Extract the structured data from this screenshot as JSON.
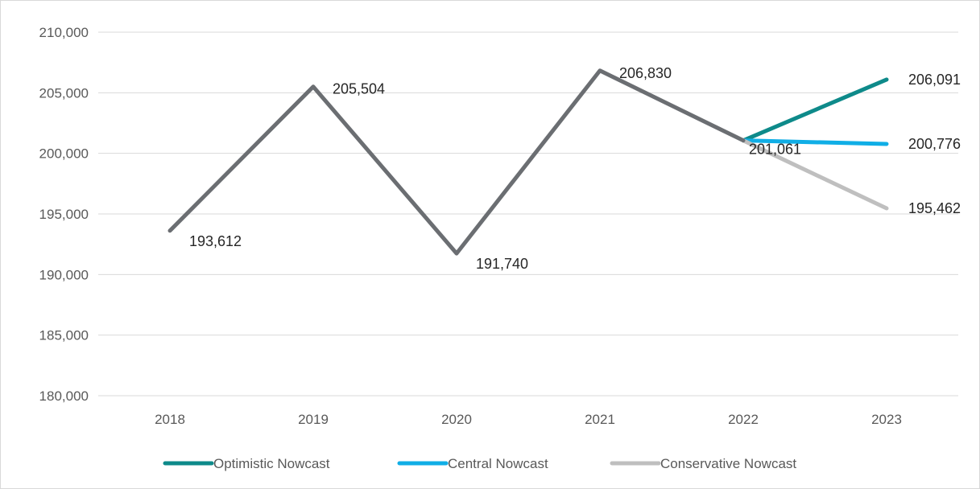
{
  "chart_data": {
    "type": "line",
    "title": "",
    "xlabel": "",
    "ylabel": "",
    "categories": [
      "2018",
      "2019",
      "2020",
      "2021",
      "2022",
      "2023"
    ],
    "ylim": [
      180000,
      210000
    ],
    "yticks": [
      180000,
      185000,
      190000,
      195000,
      200000,
      205000,
      210000
    ],
    "ytick_labels": [
      "180,000",
      "185,000",
      "190,000",
      "195,000",
      "200,000",
      "205,000",
      "210,000"
    ],
    "grid": true,
    "legend_position": "bottom",
    "history": {
      "values": [
        193612,
        205504,
        191740,
        206830,
        201061
      ],
      "labels": [
        "193,612",
        "205,504",
        "191,740",
        "206,830",
        "201,061"
      ],
      "color": "#6b6e72"
    },
    "series": [
      {
        "name": "Optimistic Nowcast",
        "x": [
          "2022",
          "2023"
        ],
        "values": [
          201061,
          206091
        ],
        "end_label": "206,091",
        "color": "#0e8a8a"
      },
      {
        "name": "Central Nowcast",
        "x": [
          "2022",
          "2023"
        ],
        "values": [
          201061,
          200776
        ],
        "end_label": "200,776",
        "color": "#10aee6"
      },
      {
        "name": "Conservative Nowcast",
        "x": [
          "2022",
          "2023"
        ],
        "values": [
          201061,
          195462
        ],
        "end_label": "195,462",
        "color": "#bfbfbf"
      }
    ]
  }
}
